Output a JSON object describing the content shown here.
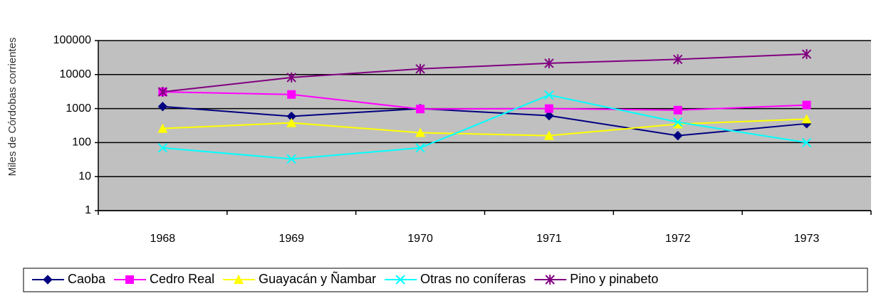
{
  "chart_data": {
    "type": "line",
    "y_label": "Miles de Córdobas corrientes",
    "categories": [
      "1968",
      "1969",
      "1970",
      "1971",
      "1972",
      "1973"
    ],
    "log_scale": true,
    "grid": true,
    "legend": "bottom",
    "ylim": [
      1,
      100000
    ],
    "yticks": [
      1,
      10,
      100,
      1000,
      10000,
      100000
    ],
    "series": [
      {
        "name": "Caoba",
        "color": "#000080",
        "marker": "diamond",
        "values": [
          1150,
          590,
          1000,
          620,
          160,
          360
        ]
      },
      {
        "name": "Cedro Real",
        "color": "#ff00ff",
        "marker": "square",
        "values": [
          3100,
          2600,
          970,
          1000,
          900,
          1270
        ]
      },
      {
        "name": "Guayacán y Ñambar",
        "color": "#ffff00",
        "marker": "triangle",
        "values": [
          260,
          380,
          195,
          160,
          350,
          490
        ]
      },
      {
        "name": "Otras no coníferas",
        "color": "#00ffff",
        "marker": "x",
        "values": [
          70,
          33,
          70,
          2500,
          400,
          100
        ]
      },
      {
        "name": "Pino y pinabeto",
        "color": "#800080",
        "marker": "star",
        "values": [
          3100,
          8200,
          14700,
          21500,
          28000,
          40000
        ]
      }
    ]
  }
}
